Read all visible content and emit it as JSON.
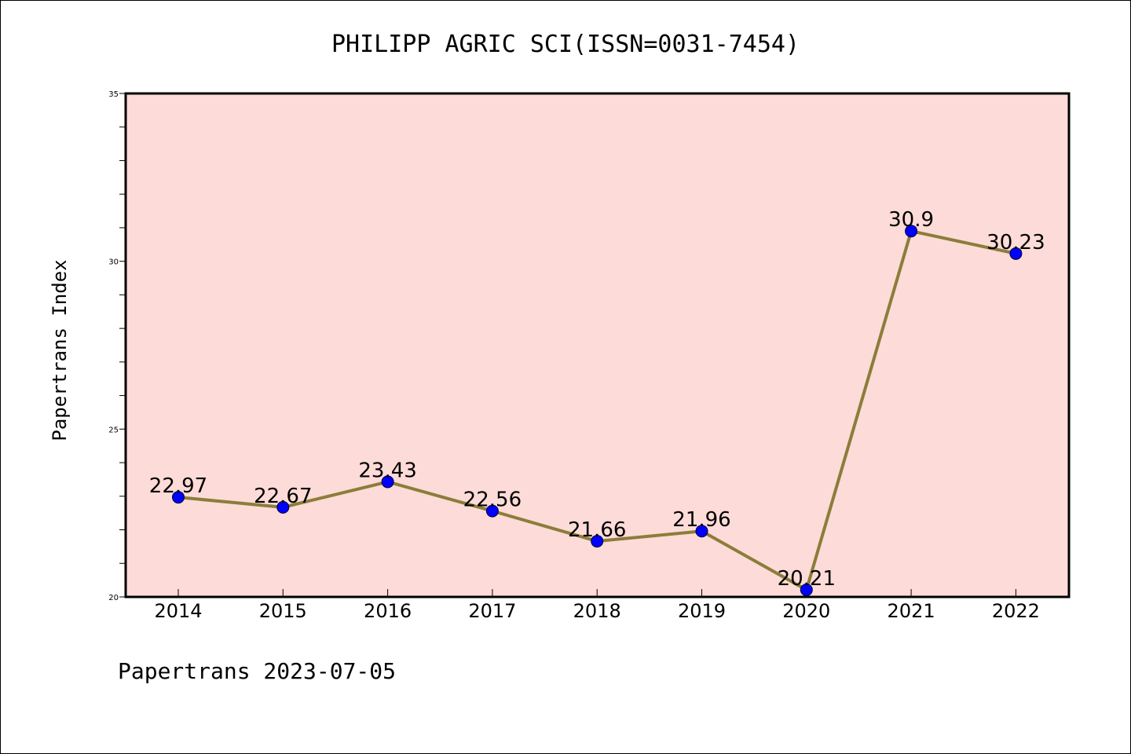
{
  "chart_data": {
    "type": "line",
    "title": "PHILIPP AGRIC SCI(ISSN=0031-7454)",
    "ylabel": "Papertrans Index",
    "xlabel": "",
    "categories": [
      "2014",
      "2015",
      "2016",
      "2017",
      "2018",
      "2019",
      "2020",
      "2021",
      "2022"
    ],
    "series": [
      {
        "values": [
          22.97,
          22.67,
          23.43,
          22.56,
          21.66,
          21.96,
          20.21,
          30.9,
          30.23
        ],
        "line_color": "#8b7d3a",
        "marker_color": "#0000ff"
      }
    ],
    "data_labels": [
      "22.97",
      "22.67",
      "23.43",
      "22.56",
      "21.66",
      "21.96",
      "20.21",
      "30.9",
      "30.23"
    ],
    "ylim": [
      20,
      35
    ],
    "yticks": [
      "20",
      "25",
      "30",
      "35"
    ],
    "y_minor_step": 1,
    "plot_background": "#fddbd8",
    "grid": false,
    "footer": "Papertrans 2023-07-05"
  }
}
